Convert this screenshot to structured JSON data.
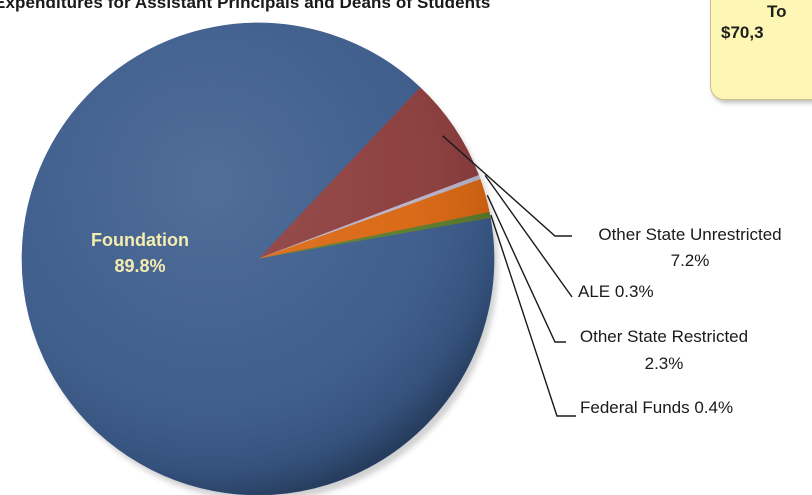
{
  "title": "Expenditures for Assistant Principals and Deans of Students",
  "callout": {
    "line1": "To",
    "line2": "$70,3"
  },
  "chart_data": {
    "type": "pie",
    "title": "Expenditures for Assistant Principals and Deans of Students",
    "slices": [
      {
        "name": "Foundation",
        "value": 89.8,
        "label": "89.8%",
        "color": "#3a5a8a"
      },
      {
        "name": "Other State Unrestricted",
        "value": 7.2,
        "label": "7.2%",
        "color": "#8b3a3a"
      },
      {
        "name": "ALE",
        "value": 0.3,
        "label": "0.3%",
        "color": "#b9b2c8"
      },
      {
        "name": "Other State Restricted",
        "value": 2.3,
        "label": "2.3%",
        "color": "#d9650f"
      },
      {
        "name": "Federal Funds",
        "value": 0.4,
        "label": "0.4%",
        "color": "#5a7a2a"
      }
    ],
    "labels": {
      "foundation_name": "Foundation",
      "foundation_pct": "89.8%",
      "osu_line1": "Other State Unrestricted",
      "osu_line2": "7.2%",
      "ale": "ALE 0.3%",
      "osr_line1": "Other State Restricted",
      "osr_line2": "2.3%",
      "federal": "Federal Funds 0.4%"
    }
  }
}
